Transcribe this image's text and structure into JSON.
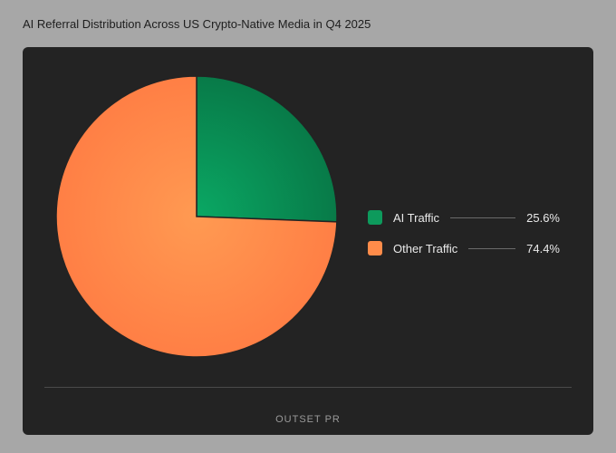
{
  "title": "AI Referral Distribution Across US Crypto-Native Media in Q4 2025",
  "logo": "OUTSET PR",
  "chart_data": {
    "type": "pie",
    "title": "AI Referral Distribution Across US Crypto-Native Media in Q4 2025",
    "legend_position": "right",
    "slices": [
      {
        "label": "AI Traffic",
        "value": 25.6,
        "display": "25.6%",
        "color": "#0d9a5c"
      },
      {
        "label": "Other Traffic",
        "value": 74.4,
        "display": "74.4%",
        "color": "#ff8c4a"
      }
    ]
  }
}
